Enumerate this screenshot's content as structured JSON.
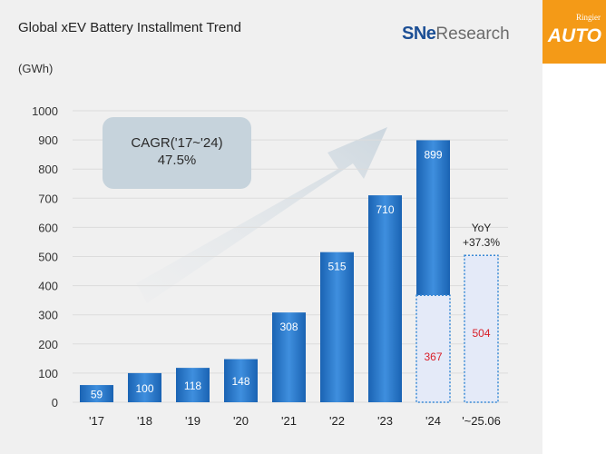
{
  "branding": {
    "logo_mark": "SNe",
    "logo_word": "Research",
    "badge_publisher": "Ringier",
    "badge_label": "AUTO"
  },
  "chart_data": {
    "type": "bar",
    "title": "Global xEV Battery Installment Trend",
    "unit_label": "(GWh)",
    "ylim": [
      0,
      1000
    ],
    "yticks": [
      0,
      100,
      200,
      300,
      400,
      500,
      600,
      700,
      800,
      900,
      1000
    ],
    "categories": [
      "'17",
      "'18",
      "'19",
      "'20",
      "'21",
      "'22",
      "'23",
      "'24",
      "'~25.06"
    ],
    "values": [
      59,
      100,
      118,
      148,
      308,
      515,
      710,
      899,
      504
    ],
    "h1_2024": 367,
    "annotation": {
      "line1": "CAGR('17~'24)",
      "line2": "47.5%"
    },
    "yoy": {
      "line1": "YoY",
      "line2": "+37.3%"
    },
    "colors": {
      "bar": "#1e6fc5",
      "dotted_outline": "#3a8ad6",
      "dotted_fill": "#e4eaf8",
      "highlight_value": "#d9202a",
      "bar_label": "#ffffff",
      "annotation_box": "#c6d3dc"
    }
  }
}
